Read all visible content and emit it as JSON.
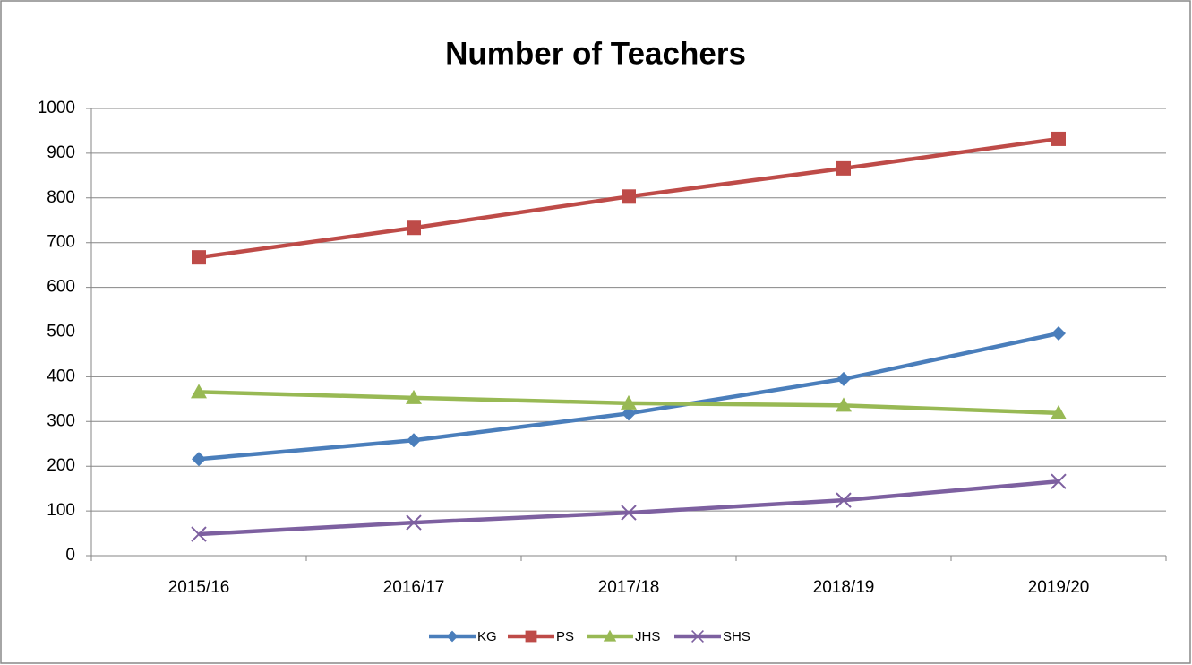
{
  "chart_data": {
    "type": "line",
    "title": "Number of Teachers",
    "categories": [
      "2015/16",
      "2016/17",
      "2017/18",
      "2018/19",
      "2019/20"
    ],
    "series": [
      {
        "name": "KG",
        "color": "#4a7ebb",
        "marker": "diamond",
        "values": [
          216,
          258,
          318,
          395,
          497
        ]
      },
      {
        "name": "PS",
        "color": "#be4b48",
        "marker": "square",
        "values": [
          667,
          733,
          803,
          866,
          932
        ]
      },
      {
        "name": "JHS",
        "color": "#98b954",
        "marker": "triangle",
        "values": [
          366,
          353,
          341,
          336,
          319
        ]
      },
      {
        "name": "SHS",
        "color": "#7d60a0",
        "marker": "x",
        "values": [
          48,
          74,
          96,
          124,
          166
        ]
      }
    ],
    "ylim": [
      0,
      1000
    ],
    "yticks": [
      0,
      100,
      200,
      300,
      400,
      500,
      600,
      700,
      800,
      900,
      1000
    ],
    "grid": true,
    "legend": "bottom"
  }
}
